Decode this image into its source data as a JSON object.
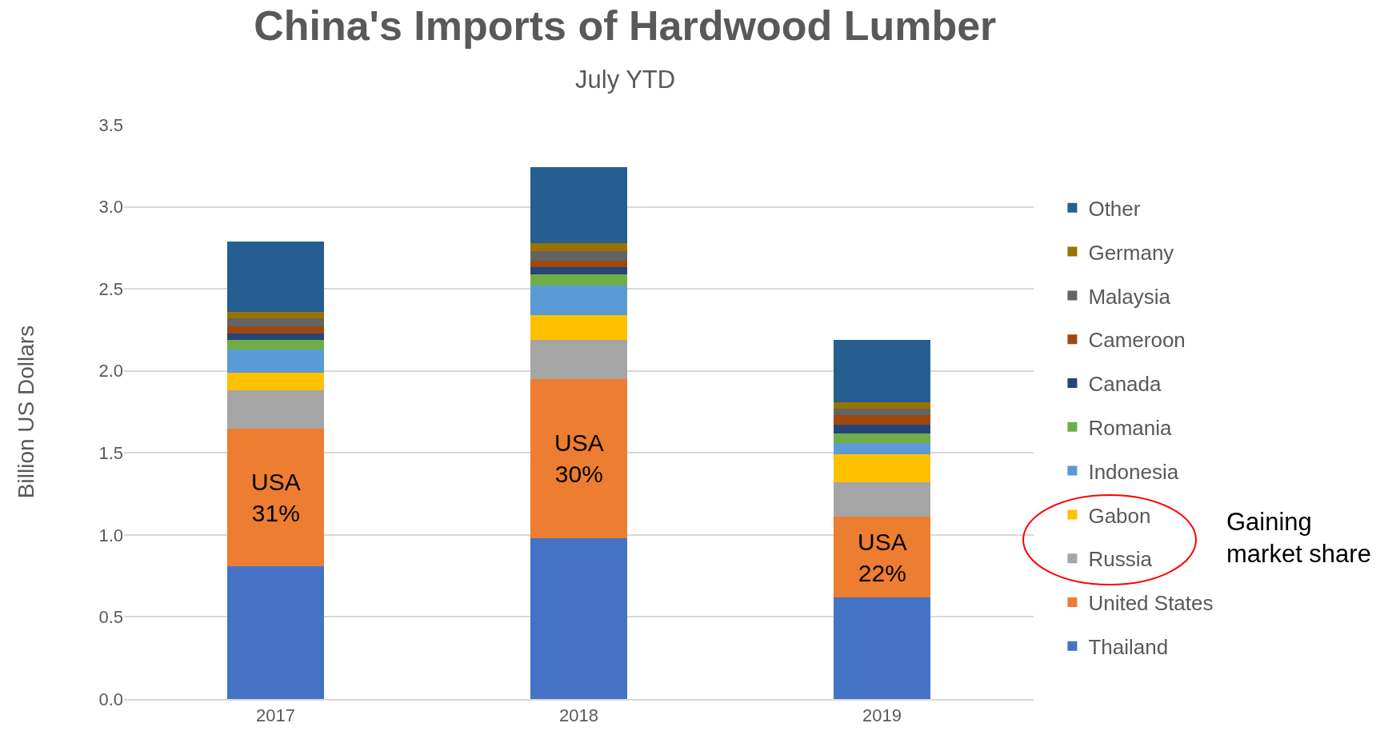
{
  "chart_data": {
    "type": "bar",
    "stacked": true,
    "title": "China's Imports of Hardwood Lumber",
    "subtitle": "July YTD",
    "ylabel": "Billion US Dollars",
    "categories": [
      "2017",
      "2018",
      "2019"
    ],
    "series": [
      {
        "name": "Thailand",
        "color": "#4472c4",
        "values": [
          0.81,
          0.98,
          0.62
        ]
      },
      {
        "name": "United States",
        "color": "#ed7d31",
        "values": [
          0.84,
          0.97,
          0.49
        ]
      },
      {
        "name": "Russia",
        "color": "#a5a5a5",
        "values": [
          0.23,
          0.24,
          0.21
        ]
      },
      {
        "name": "Gabon",
        "color": "#ffc000",
        "values": [
          0.11,
          0.15,
          0.17
        ]
      },
      {
        "name": "Indonesia",
        "color": "#5b9bd5",
        "values": [
          0.14,
          0.18,
          0.07
        ]
      },
      {
        "name": "Romania",
        "color": "#70ad47",
        "values": [
          0.06,
          0.07,
          0.06
        ]
      },
      {
        "name": "Canada",
        "color": "#264478",
        "values": [
          0.04,
          0.04,
          0.05
        ]
      },
      {
        "name": "Cameroon",
        "color": "#9e480e",
        "values": [
          0.04,
          0.04,
          0.06
        ]
      },
      {
        "name": "Malaysia",
        "color": "#636363",
        "values": [
          0.05,
          0.06,
          0.04
        ]
      },
      {
        "name": "Germany",
        "color": "#997300",
        "values": [
          0.04,
          0.05,
          0.04
        ]
      },
      {
        "name": "Other",
        "color": "#255e91",
        "values": [
          0.43,
          0.46,
          0.38
        ]
      }
    ],
    "ylim": [
      0,
      3.5
    ],
    "yticks": [
      {
        "value": 0,
        "label": "0.0"
      },
      {
        "value": 0.5,
        "label": "0.5"
      },
      {
        "value": 1,
        "label": "1.0"
      },
      {
        "value": 1.5,
        "label": "1.5"
      },
      {
        "value": 2,
        "label": "2.0"
      },
      {
        "value": 2.5,
        "label": "2.5"
      },
      {
        "value": 3,
        "label": "3.0"
      },
      {
        "value": 3.5,
        "label": "3.5"
      }
    ],
    "grid": "y",
    "legend": "right",
    "annotations": [
      "USA\n31%",
      "USA\n30%",
      "USA\n22%",
      "Gaining\nmarket share"
    ]
  }
}
